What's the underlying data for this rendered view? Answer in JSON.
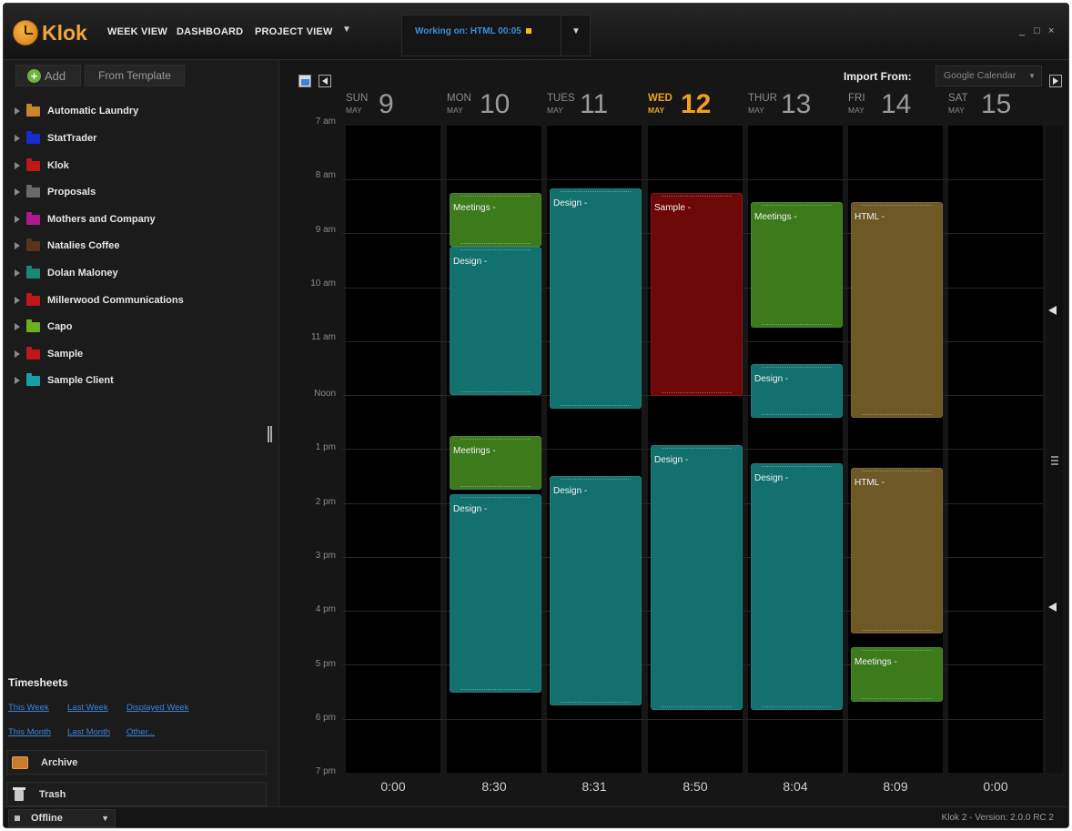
{
  "app": {
    "logo_text": "Klok",
    "nav": [
      "WEEK VIEW",
      "DASHBOARD",
      "PROJECT VIEW"
    ],
    "working_on": "Working on: HTML 00:05",
    "window_controls": [
      "_",
      "□",
      "×"
    ]
  },
  "sidebar": {
    "add_label": "Add",
    "template_label": "From Template",
    "projects": [
      {
        "name": "Automatic Laundry",
        "color": "#c8872c"
      },
      {
        "name": "StatTrader",
        "color": "#1a2bd0"
      },
      {
        "name": "Klok",
        "color": "#c01818"
      },
      {
        "name": "Proposals",
        "color": "#6a6a6a"
      },
      {
        "name": "Mothers and Company",
        "color": "#b0198c"
      },
      {
        "name": "Natalies Coffee",
        "color": "#5a3418"
      },
      {
        "name": "Dolan Maloney",
        "color": "#1a8870"
      },
      {
        "name": "Millerwood Communications",
        "color": "#c01818"
      },
      {
        "name": "Capo",
        "color": "#6cb020"
      },
      {
        "name": "Sample",
        "color": "#c01818"
      },
      {
        "name": "Sample Client",
        "color": "#18a0a8"
      }
    ],
    "timesheets": {
      "title": "Timesheets",
      "links": [
        "This Week",
        "Last Week",
        "Displayed Week",
        "This Month",
        "Last Month",
        "Other..."
      ]
    },
    "archive_label": "Archive",
    "trash_label": "Trash",
    "status_label": "Offline"
  },
  "calendar": {
    "import_label": "Import From:",
    "import_source": "Google Calendar",
    "days": [
      {
        "name": "SUN",
        "month": "MAY",
        "num": "9",
        "total": "0:00",
        "today": false
      },
      {
        "name": "MON",
        "month": "MAY",
        "num": "10",
        "total": "8:30",
        "today": false
      },
      {
        "name": "TUES",
        "month": "MAY",
        "num": "11",
        "total": "8:31",
        "today": false
      },
      {
        "name": "WED",
        "month": "MAY",
        "num": "12",
        "total": "8:50",
        "today": true
      },
      {
        "name": "THUR",
        "month": "MAY",
        "num": "13",
        "total": "8:04",
        "today": false
      },
      {
        "name": "FRI",
        "month": "MAY",
        "num": "14",
        "total": "8:09",
        "today": false
      },
      {
        "name": "SAT",
        "month": "MAY",
        "num": "15",
        "total": "0:00",
        "today": false
      }
    ],
    "hours": [
      "7 am",
      "8 am",
      "9 am",
      "10 am",
      "11 am",
      "Noon",
      "1 pm",
      "2 pm",
      "3 pm",
      "4 pm",
      "5 pm",
      "6 pm",
      "7 pm"
    ],
    "events": [
      {
        "day": 1,
        "label": "Meetings -",
        "start": "8:15 am",
        "end": "9:15 am",
        "color": "#3c7a1c"
      },
      {
        "day": 1,
        "label": "Design -",
        "start": "9:15 am",
        "end": "12:00 pm",
        "color": "#12706e"
      },
      {
        "day": 1,
        "label": "Meetings -",
        "start": "12:45 pm",
        "end": "1:45 pm",
        "color": "#3c7a1c"
      },
      {
        "day": 1,
        "label": "Design -",
        "start": "1:50 pm",
        "end": "5:30 pm",
        "color": "#12706e"
      },
      {
        "day": 2,
        "label": "Design -",
        "start": "8:10 am",
        "end": "12:15 pm",
        "color": "#12706e"
      },
      {
        "day": 2,
        "label": "Design -",
        "start": "1:30 pm",
        "end": "5:45 pm",
        "color": "#12706e"
      },
      {
        "day": 3,
        "label": "Sample -",
        "start": "8:15 am",
        "end": "12:00 pm",
        "color": "#6e0808"
      },
      {
        "day": 3,
        "label": "Design -",
        "start": "12:55 pm",
        "end": "5:50 pm",
        "color": "#12706e"
      },
      {
        "day": 4,
        "label": "Meetings -",
        "start": "8:25 am",
        "end": "10:45 am",
        "color": "#3c7a1c"
      },
      {
        "day": 4,
        "label": "Design -",
        "start": "11:25 am",
        "end": "12:25 pm",
        "color": "#12706e"
      },
      {
        "day": 4,
        "label": "Design -",
        "start": "1:15 pm",
        "end": "5:50 pm",
        "color": "#12706e"
      },
      {
        "day": 5,
        "label": "HTML -",
        "start": "8:25 am",
        "end": "12:25 pm",
        "color": "#6e5826"
      },
      {
        "day": 5,
        "label": "HTML -",
        "start": "1:20 pm",
        "end": "4:25 pm",
        "color": "#6e5826"
      },
      {
        "day": 5,
        "label": "Meetings -",
        "start": "4:40 pm",
        "end": "5:40 pm",
        "color": "#3c7a1c"
      }
    ]
  },
  "footer": {
    "version": "Klok 2 - Version: 2.0.0 RC 2"
  }
}
